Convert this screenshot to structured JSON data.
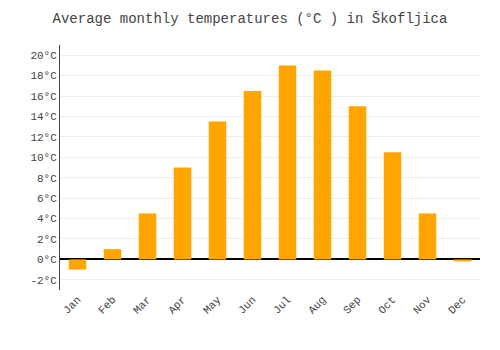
{
  "chart_data": {
    "type": "bar",
    "title": "Average monthly temperatures (°C ) in Škofljica",
    "categories": [
      "Jan",
      "Feb",
      "Mar",
      "Apr",
      "May",
      "Jun",
      "Jul",
      "Aug",
      "Sep",
      "Oct",
      "Nov",
      "Dec"
    ],
    "values": [
      -1.0,
      1.0,
      4.5,
      9.0,
      13.5,
      16.5,
      19.0,
      18.5,
      15.0,
      10.5,
      4.5,
      -0.2
    ],
    "color": "#FFA500",
    "ylim": [
      -3,
      21
    ],
    "yticks": [
      {
        "value": -2,
        "label": "-2°C"
      },
      {
        "value": 0,
        "label": "0°C"
      },
      {
        "value": 2,
        "label": "2°C"
      },
      {
        "value": 4,
        "label": "4°C"
      },
      {
        "value": 6,
        "label": "6°C"
      },
      {
        "value": 8,
        "label": "8°C"
      },
      {
        "value": 10,
        "label": "10°C"
      },
      {
        "value": 12,
        "label": "12°C"
      },
      {
        "value": 14,
        "label": "14°C"
      },
      {
        "value": 16,
        "label": "16°C"
      },
      {
        "value": 18,
        "label": "18°C"
      },
      {
        "value": 20,
        "label": "20°C"
      }
    ],
    "grid": true
  }
}
